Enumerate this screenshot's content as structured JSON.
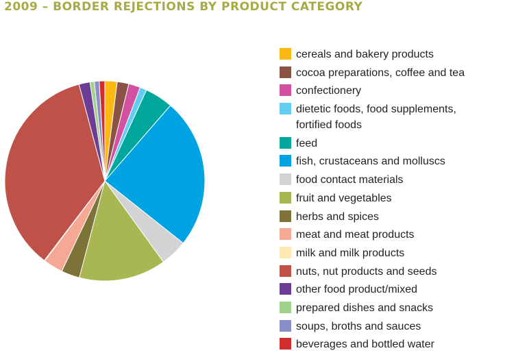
{
  "chart_data": {
    "type": "pie",
    "title": "2009 – BORDER REJECTIONS BY PRODUCT CATEGORY",
    "categories": [
      "cereals and bakery products",
      "cocoa preparations, coffee and tea",
      "confectionery",
      "dietetic foods, food supplements, fortified foods",
      "feed",
      "fish, crustaceans and molluscs",
      "food contact materials",
      "fruit and vegetables",
      "herbs and spices",
      "meat and meat products",
      "milk and milk products",
      "nuts, nut products and seeds",
      "other food product/mixed",
      "prepared dishes and snacks",
      "soups, broths and sauces",
      "beverages and bottled water"
    ],
    "values": [
      2.0,
      1.9,
      1.9,
      1.1,
      4.6,
      24.5,
      4.4,
      14.2,
      3.0,
      3.2,
      0.1,
      35.8,
      1.8,
      0.7,
      0.8,
      0.9
    ],
    "colors": [
      "#fdb913",
      "#8b5346",
      "#d252a1",
      "#61cdf2",
      "#00a79a",
      "#00a3e2",
      "#d1d3d4",
      "#a8b751",
      "#7d7237",
      "#f5a894",
      "#fde9b1",
      "#c05148",
      "#6b3e94",
      "#a2d18c",
      "#8b8fc8",
      "#d12d2c"
    ],
    "legend_position": "right",
    "grid": false
  },
  "legend_lines": [
    [
      "cereals and bakery products"
    ],
    [
      "cocoa preparations, coffee and tea"
    ],
    [
      "confectionery"
    ],
    [
      "dietetic foods, food supplements,",
      "fortified foods"
    ],
    [
      "feed"
    ],
    [
      "fish, crustaceans and molluscs"
    ],
    [
      "food contact materials"
    ],
    [
      "fruit and vegetables"
    ],
    [
      "herbs and spices"
    ],
    [
      "meat and meat products"
    ],
    [
      "milk and milk products"
    ],
    [
      "nuts, nut products and seeds"
    ],
    [
      "other food product/mixed"
    ],
    [
      "prepared dishes and snacks"
    ],
    [
      "soups, broths and sauces"
    ],
    [
      "beverages and bottled water"
    ]
  ]
}
